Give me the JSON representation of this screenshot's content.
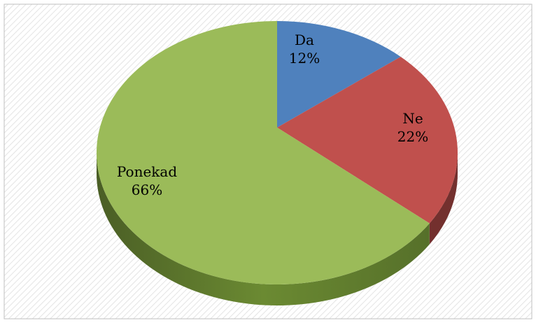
{
  "chart_data": {
    "type": "pie",
    "categories": [
      "Da",
      "Ne",
      "Ponekad"
    ],
    "values": [
      12,
      22,
      66
    ],
    "value_labels": [
      "12%",
      "22%",
      "66%"
    ],
    "colors": [
      "#4f81bd",
      "#c0504d",
      "#9bbb59"
    ]
  }
}
